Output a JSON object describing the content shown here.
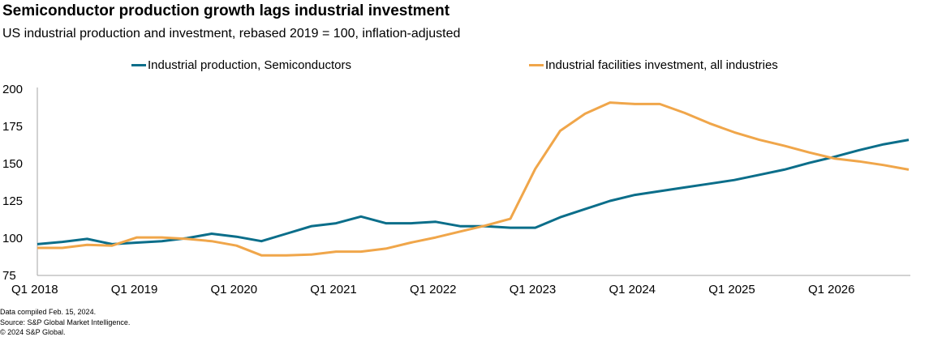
{
  "chart_data": {
    "type": "line",
    "title": "Semiconductor production growth lags industrial investment",
    "subtitle": "US industrial production and investment, rebased 2019 = 100, inflation-adjusted",
    "xlabel": "",
    "ylabel": "",
    "ylim": [
      75,
      200
    ],
    "yticks": [
      75,
      100,
      125,
      150,
      175,
      200
    ],
    "xtick_labels": [
      "Q1 2018",
      "Q1 2019",
      "Q1 2020",
      "Q1 2021",
      "Q1 2022",
      "Q1 2023",
      "Q1 2024",
      "Q1 2025",
      "Q1 2026"
    ],
    "x": [
      "Q1 2018",
      "Q2 2018",
      "Q3 2018",
      "Q4 2018",
      "Q1 2019",
      "Q2 2019",
      "Q3 2019",
      "Q4 2019",
      "Q1 2020",
      "Q2 2020",
      "Q3 2020",
      "Q4 2020",
      "Q1 2021",
      "Q2 2021",
      "Q3 2021",
      "Q4 2021",
      "Q1 2022",
      "Q2 2022",
      "Q3 2022",
      "Q4 2022",
      "Q1 2023",
      "Q2 2023",
      "Q3 2023",
      "Q4 2023",
      "Q1 2024",
      "Q2 2024",
      "Q3 2024",
      "Q4 2024",
      "Q1 2025",
      "Q2 2025",
      "Q3 2025",
      "Q4 2025",
      "Q1 2026",
      "Q2 2026",
      "Q3 2026",
      "Q4 2026"
    ],
    "grid": false,
    "legend_position": "top",
    "series": [
      {
        "name": "Industrial production, Semiconductors",
        "color": "#0b6e8a",
        "values": [
          96,
          97.5,
          99.5,
          96,
          97,
          98,
          100,
          103,
          101,
          98,
          103,
          108,
          110,
          114.5,
          110,
          110,
          111,
          108,
          108,
          107,
          107,
          114,
          119.5,
          125,
          129,
          131.5,
          134,
          136.5,
          139,
          142.5,
          146,
          150.5,
          154.5,
          159,
          163,
          166
        ]
      },
      {
        "name": "Industrial facilities investment, all industries",
        "color": "#f0a64a",
        "values": [
          93.5,
          93.5,
          95.5,
          95,
          100.5,
          100.5,
          99.5,
          98,
          95,
          88.5,
          88.5,
          89,
          91,
          91,
          93,
          97,
          100.5,
          104.5,
          108.5,
          113,
          146.5,
          172,
          183.5,
          191,
          190,
          190,
          184,
          177,
          171,
          166,
          162,
          157.5,
          153.5,
          151.5,
          149,
          146
        ]
      }
    ]
  },
  "footnotes": [
    "Data compiled Feb. 15, 2024.",
    "Source: S&P Global Market Intelligence.",
    "© 2024 S&P Global."
  ]
}
